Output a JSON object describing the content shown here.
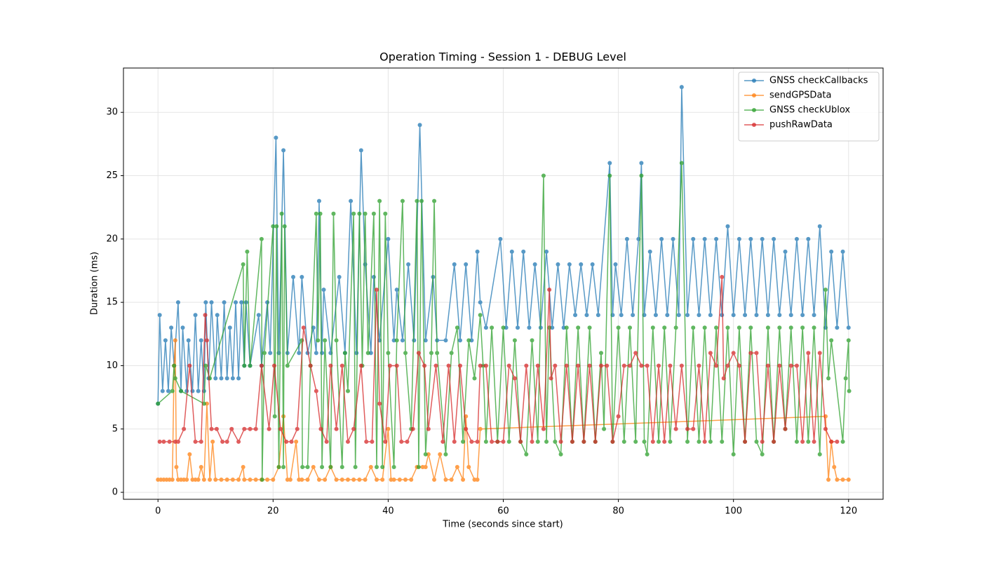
{
  "chart_data": {
    "type": "line",
    "title": "Operation Timing - Session 1 - DEBUG Level",
    "xlabel": "Time (seconds since start)",
    "ylabel": "Duration (ms)",
    "xlim": [
      -6,
      126
    ],
    "ylim": [
      -0.55,
      33.5
    ],
    "xticks": [
      0,
      20,
      40,
      60,
      80,
      100,
      120
    ],
    "yticks": [
      0,
      5,
      10,
      15,
      20,
      25,
      30
    ],
    "grid": true,
    "legend": "upper right",
    "series": [
      {
        "name": "GNSS checkCallbacks",
        "color": "#1f77b4",
        "x": [
          0,
          0.3,
          0.8,
          1.3,
          1.8,
          2.3,
          2.8,
          3.5,
          4,
          4.3,
          5,
          5.3,
          6,
          6.5,
          7,
          7.5,
          8,
          8.3,
          8.8,
          9.3,
          10,
          10.3,
          11,
          11.5,
          12,
          12.5,
          13,
          13.5,
          14,
          14.5,
          15,
          15.3,
          16,
          17.5,
          18,
          19,
          19.5,
          20.5,
          21,
          21.8,
          22.5,
          23.5,
          24.5,
          25,
          26,
          27,
          27.5,
          28,
          28.5,
          28.8,
          30,
          31.5,
          32.5,
          33.5,
          34.5,
          35.3,
          36,
          37,
          37.5,
          38.5,
          40,
          41,
          41.5,
          42.5,
          43.5,
          44.5,
          45.5,
          46.5,
          47.8,
          48.5,
          50,
          51.5,
          52.5,
          53.5,
          54.5,
          55.5,
          56,
          57,
          59.5,
          60.5,
          61.5,
          62.5,
          63.5,
          64.5,
          65.5,
          66.5,
          67.5,
          68.5,
          69.5,
          70.5,
          71.5,
          72.5,
          73.5,
          74.5,
          75.5,
          76.5,
          78.5,
          79,
          79.5,
          80.5,
          81.5,
          82.5,
          83.5,
          84,
          84.5,
          85.5,
          86.5,
          87.5,
          88.5,
          89.5,
          90.5,
          91,
          92,
          93,
          94,
          95,
          96,
          97,
          98,
          99,
          100,
          101,
          102,
          103,
          104,
          105,
          106,
          107,
          108,
          109,
          110,
          111,
          112,
          113,
          114,
          115,
          116,
          117,
          118,
          119,
          120
        ],
        "values": [
          7,
          14,
          8,
          12,
          8,
          13,
          10,
          15,
          8,
          13,
          8,
          12,
          8,
          14,
          8,
          12,
          8,
          15,
          9,
          15,
          9,
          14,
          9,
          15,
          9,
          13,
          9,
          15,
          9,
          15,
          10,
          15,
          10,
          14,
          10,
          15,
          11,
          28,
          11,
          27,
          11,
          17,
          11,
          17,
          11,
          13,
          11,
          23,
          11,
          16,
          11,
          17,
          11,
          23,
          11,
          27,
          18,
          11,
          17,
          12,
          20,
          12,
          16,
          12,
          18,
          12,
          29,
          12,
          17,
          12,
          12,
          18,
          12,
          18,
          12,
          19,
          15,
          13,
          20,
          13,
          19,
          13,
          19,
          13,
          18,
          13,
          19,
          13,
          18,
          13,
          18,
          14,
          18,
          14,
          18,
          14,
          26,
          14,
          18,
          14,
          20,
          14,
          20,
          26,
          14,
          19,
          14,
          20,
          14,
          20,
          14,
          32,
          14,
          20,
          14,
          20,
          14,
          20,
          14,
          21,
          14,
          20,
          14,
          20,
          14,
          20,
          14,
          20,
          14,
          19,
          14,
          20,
          14,
          20,
          14,
          21,
          13,
          19,
          13,
          19,
          13
        ]
      },
      {
        "name": "sendGPSData",
        "color": "#ff7f0e",
        "x": [
          0,
          0.5,
          1,
          1.5,
          2,
          2.5,
          2.8,
          3,
          3.2,
          3.5,
          4,
          4.5,
          5,
          5.5,
          6,
          6.5,
          7,
          7.5,
          8,
          8.5,
          9,
          9.5,
          10,
          11,
          12,
          13,
          14,
          14.8,
          15,
          16,
          17,
          18,
          19,
          20,
          21,
          21.8,
          22.5,
          23,
          24,
          24.5,
          25,
          26,
          27,
          28,
          29,
          30,
          31,
          32,
          33,
          34,
          35,
          36,
          37,
          38,
          39,
          40,
          40.5,
          41,
          42,
          43,
          44,
          45,
          46,
          46.5,
          47,
          48,
          49,
          50,
          51,
          52,
          53,
          53.5,
          54,
          55,
          55.5,
          56,
          116,
          116.5,
          117,
          117.5,
          118,
          119,
          120
        ],
        "values": [
          1,
          1,
          1,
          1,
          1,
          1,
          10,
          12,
          2,
          1,
          1,
          1,
          1,
          3,
          1,
          1,
          1,
          2,
          1,
          7,
          1,
          4,
          1,
          1,
          1,
          1,
          1,
          2,
          1,
          1,
          1,
          1,
          1,
          1,
          2,
          6,
          1,
          1,
          4,
          1,
          1,
          1,
          2,
          1,
          1,
          2,
          1,
          1,
          1,
          1,
          1,
          1,
          2,
          1,
          1,
          5,
          1,
          1,
          1,
          1,
          1,
          2,
          2,
          2,
          3,
          1,
          3,
          1,
          1,
          2,
          1,
          6,
          2,
          1,
          1,
          5,
          6,
          1,
          4,
          2,
          1,
          1,
          1
        ]
      },
      {
        "name": "GNSS checkUblox",
        "color": "#2ca02c",
        "x": [
          0,
          2.5,
          2.8,
          3,
          4,
          8,
          8.3,
          9,
          14.8,
          15,
          15.5,
          16,
          18,
          18.1,
          18.5,
          20,
          20.3,
          20.6,
          21,
          21.5,
          21.8,
          22,
          22.5,
          25,
          25.1,
          26,
          26.5,
          27.5,
          27.8,
          28.2,
          28.5,
          29,
          30,
          30.5,
          31,
          32,
          32.5,
          33,
          34,
          34.3,
          35,
          35.5,
          36,
          36.5,
          37.5,
          38,
          38.5,
          39,
          39.5,
          40,
          41,
          41.5,
          42.5,
          43,
          44,
          45,
          45.3,
          45.8,
          46.5,
          47.5,
          48,
          48.5,
          50,
          51,
          52,
          53,
          54,
          55,
          56,
          56.5,
          57,
          58,
          59,
          60,
          61,
          62,
          63,
          64,
          65,
          66,
          67,
          67.5,
          68,
          69,
          70,
          71,
          72,
          73,
          74,
          75,
          76,
          77,
          77.5,
          78.5,
          79,
          80,
          81,
          82,
          83,
          84,
          84.5,
          85,
          86,
          87,
          88,
          89,
          90,
          91,
          92,
          93,
          94,
          95,
          96,
          97,
          98,
          99,
          100,
          101,
          102,
          103,
          104,
          105,
          106,
          107,
          108,
          109,
          110,
          111,
          112,
          113,
          114,
          115,
          116,
          116.5,
          117,
          119,
          119.5,
          120,
          120.1
        ],
        "values": [
          7,
          8,
          10,
          9,
          8,
          7,
          10,
          9,
          18,
          10,
          19,
          10,
          20,
          1,
          11,
          21,
          6,
          21,
          2,
          22,
          2,
          21,
          10,
          12,
          2,
          2,
          10,
          22,
          12,
          22,
          2,
          12,
          2,
          22,
          12,
          2,
          11,
          8,
          22,
          2,
          22,
          10,
          22,
          11,
          22,
          2,
          23,
          2,
          22,
          11,
          2,
          12,
          23,
          11,
          5,
          23,
          2,
          23,
          3,
          11,
          23,
          11,
          3,
          11,
          13,
          4,
          12,
          9,
          14,
          10,
          4,
          13,
          4,
          13,
          4,
          12,
          4,
          3,
          12,
          4,
          25,
          4,
          13,
          4,
          3,
          13,
          4,
          13,
          4,
          13,
          4,
          11,
          5,
          25,
          4,
          13,
          4,
          13,
          4,
          25,
          4,
          3,
          13,
          4,
          13,
          4,
          13,
          26,
          4,
          13,
          4,
          13,
          4,
          13,
          4,
          13,
          3,
          13,
          4,
          13,
          4,
          3,
          13,
          4,
          13,
          5,
          13,
          4,
          13,
          4,
          13,
          3,
          16,
          9,
          12,
          4,
          9,
          12,
          8
        ]
      },
      {
        "name": "pushRawData",
        "color": "#d62728",
        "x": [
          0.3,
          1,
          2,
          3,
          3.5,
          4.5,
          5.5,
          6.5,
          7.5,
          8.2,
          8.5,
          9.3,
          10.2,
          11.2,
          12,
          12.8,
          14,
          15,
          16,
          17,
          18,
          19.3,
          20.2,
          21.3,
          22.3,
          23.2,
          24.2,
          25.3,
          26.5,
          27.5,
          28.3,
          29.3,
          30,
          31,
          32,
          33,
          34,
          35.3,
          36.2,
          37.2,
          38,
          38.5,
          39.5,
          40.3,
          41.5,
          42.3,
          43.3,
          44.3,
          45.3,
          46.3,
          47,
          48.3,
          49.5,
          50.5,
          51.5,
          52.5,
          53.5,
          54.5,
          55.5,
          56,
          57,
          58,
          59,
          60,
          61,
          62,
          63,
          64,
          65,
          66,
          67,
          68,
          68.3,
          69,
          70,
          71,
          72,
          73,
          74,
          75,
          76,
          77,
          78,
          79,
          80,
          81,
          82,
          83,
          84,
          85,
          86,
          87,
          88,
          89,
          90,
          91,
          92,
          93,
          94,
          95,
          96,
          97,
          98,
          98.3,
          99,
          100,
          101,
          102,
          103,
          104,
          105,
          106,
          107,
          108,
          109,
          110,
          111,
          112,
          113,
          114,
          115,
          116,
          117,
          118
        ],
        "values": [
          4,
          4,
          4,
          4,
          4,
          5,
          10,
          4,
          4,
          14,
          12,
          5,
          5,
          4,
          4,
          5,
          4,
          5,
          5,
          5,
          10,
          5,
          10,
          5,
          4,
          4,
          5,
          13,
          10,
          8,
          5,
          4,
          10,
          5,
          10,
          4,
          5,
          10,
          4,
          4,
          16,
          7,
          4,
          10,
          10,
          4,
          4,
          5,
          11,
          10,
          5,
          10,
          4,
          10,
          4,
          10,
          5,
          4,
          4,
          10,
          10,
          4,
          4,
          4,
          10,
          9,
          4,
          10,
          4,
          10,
          5,
          16,
          9,
          10,
          4,
          10,
          4,
          10,
          4,
          10,
          4,
          10,
          10,
          4,
          6,
          10,
          10,
          11,
          10,
          10,
          4,
          10,
          4,
          10,
          5,
          10,
          5,
          5,
          10,
          4,
          11,
          10,
          17,
          9,
          10,
          11,
          10,
          4,
          11,
          11,
          4,
          10,
          4,
          10,
          5,
          10,
          10,
          4,
          11,
          4,
          11,
          5,
          4,
          4
        ]
      }
    ]
  }
}
